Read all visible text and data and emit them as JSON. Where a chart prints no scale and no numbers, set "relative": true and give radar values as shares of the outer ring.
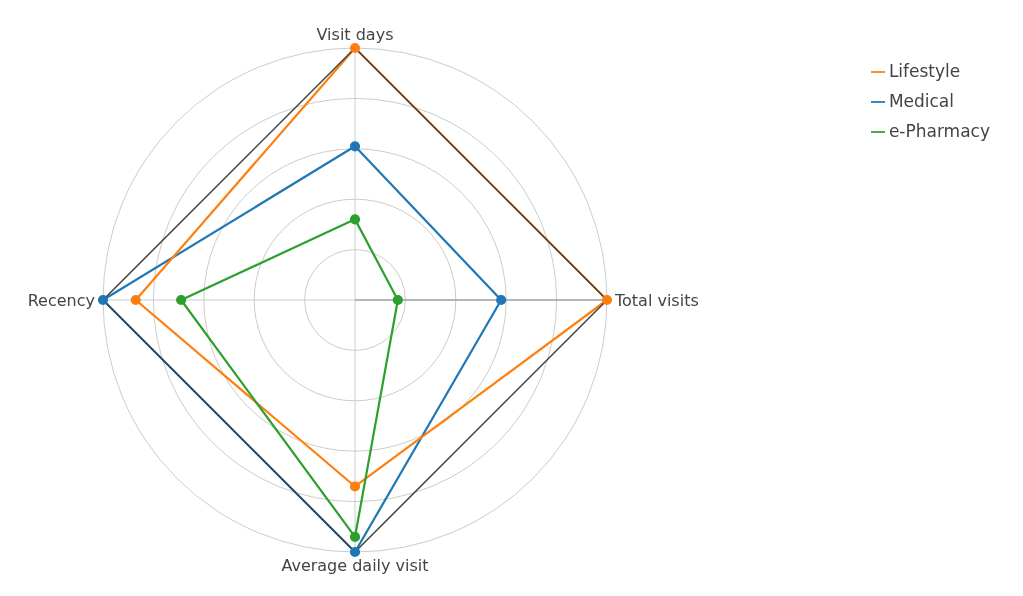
{
  "chart_data": {
    "type": "radar",
    "relative": true,
    "categories": [
      "Visit days",
      "Total visits",
      "Average daily visit",
      "Recency"
    ],
    "series": [
      {
        "name": "Medical",
        "color": "#1f77b4",
        "values": [
          0.61,
          0.58,
          1.0,
          1.0
        ]
      },
      {
        "name": "Lifestyle",
        "color": "#ff7f0e",
        "values": [
          1.0,
          1.0,
          0.74,
          0.87
        ]
      },
      {
        "name": "e-Pharmacy",
        "color": "#2ca02c",
        "values": [
          0.32,
          0.17,
          0.94,
          0.69
        ]
      }
    ],
    "grid": true,
    "legend": "top right",
    "marker": "circle",
    "line_style": "solid"
  }
}
